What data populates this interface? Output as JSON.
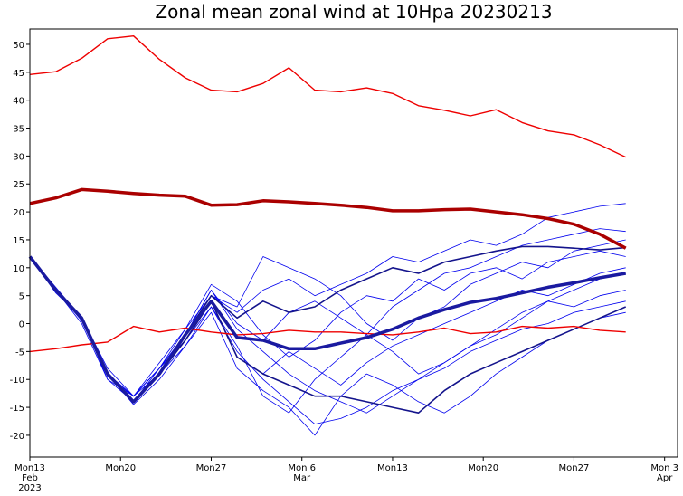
{
  "chart_data": {
    "type": "line",
    "title": "Zonal mean zonal wind at 10Hpa 20230213",
    "x": [
      "2023-02-13",
      "2023-02-15",
      "2023-02-17",
      "2023-02-19",
      "2023-02-21",
      "2023-02-23",
      "2023-02-25",
      "2023-02-27",
      "2023-03-01",
      "2023-03-03",
      "2023-03-05",
      "2023-03-07",
      "2023-03-09",
      "2023-03-11",
      "2023-03-13",
      "2023-03-15",
      "2023-03-17",
      "2023-03-19",
      "2023-03-21",
      "2023-03-23",
      "2023-03-25",
      "2023-03-27",
      "2023-03-29",
      "2023-03-31"
    ],
    "xlim": [
      "2023-02-13",
      "2023-04-04"
    ],
    "xticks": [
      {
        "value": "2023-02-13",
        "label": [
          "Mon13",
          "Feb",
          "2023"
        ]
      },
      {
        "value": "2023-02-20",
        "label": [
          "Mon20"
        ]
      },
      {
        "value": "2023-02-27",
        "label": [
          "Mon27"
        ]
      },
      {
        "value": "2023-03-06",
        "label": [
          "Mon 6",
          "Mar"
        ]
      },
      {
        "value": "2023-03-13",
        "label": [
          "Mon13"
        ]
      },
      {
        "value": "2023-03-20",
        "label": [
          "Mon20"
        ]
      },
      {
        "value": "2023-03-27",
        "label": [
          "Mon27"
        ]
      },
      {
        "value": "2023-04-03",
        "label": [
          "Mon 3",
          "Apr"
        ]
      }
    ],
    "ylim": [
      -23.9,
      52.75
    ],
    "yticks": [
      -20,
      -15,
      -10,
      -5,
      0,
      5,
      10,
      15,
      20,
      25,
      30,
      35,
      40,
      45,
      50
    ],
    "series": [
      {
        "color": "#0000ee",
        "width": 0.8,
        "values": [
          12,
          6,
          0.5,
          -9.5,
          -13,
          -7,
          -1,
          5,
          2,
          6,
          8,
          5,
          7,
          9,
          12,
          11,
          13,
          15,
          14,
          16,
          19,
          20,
          21,
          21.5
        ]
      },
      {
        "color": "#0000ee",
        "width": 0.8,
        "values": [
          12,
          6,
          1,
          -10,
          -14,
          -8,
          -3,
          3,
          -5,
          -10,
          -14,
          -18,
          -17,
          -15,
          -12,
          -10,
          -8,
          -5,
          -3,
          -1,
          0,
          2,
          3,
          4
        ]
      },
      {
        "color": "#0000ee",
        "width": 0.8,
        "values": [
          12,
          6,
          1,
          -8,
          -13,
          -9,
          -2,
          6,
          0,
          -3,
          2,
          4,
          1,
          -2,
          3,
          6,
          9,
          10,
          12,
          14,
          15,
          16,
          17,
          16.5
        ]
      },
      {
        "color": "#0000ee",
        "width": 0.8,
        "values": [
          12,
          5.5,
          1,
          -9,
          -14.5,
          -10,
          -4,
          2,
          -8,
          -12,
          -15,
          -20,
          -13,
          -9,
          -11,
          -14,
          -16,
          -13,
          -9,
          -6,
          -3,
          -1,
          1,
          2
        ]
      },
      {
        "color": "#0000ee",
        "width": 0.8,
        "values": [
          12,
          6,
          0,
          -10,
          -13,
          -8,
          -1,
          7,
          4,
          -2,
          -6,
          -3,
          2,
          5,
          4,
          8,
          6,
          9,
          10,
          8,
          11,
          12,
          13,
          12
        ]
      },
      {
        "color": "#0000ee",
        "width": 0.8,
        "values": [
          12,
          6,
          1,
          -9,
          -14,
          -9,
          -3,
          4,
          -6,
          -9,
          -5,
          -8,
          -11,
          -7,
          -4,
          -2,
          0,
          2,
          4,
          6,
          5,
          7,
          9,
          10
        ]
      },
      {
        "color": "#0000ee",
        "width": 0.8,
        "values": [
          12,
          6,
          1,
          -9,
          -13,
          -8,
          -2,
          5,
          3,
          12,
          10,
          8,
          5,
          0,
          -3,
          1,
          3,
          7,
          9,
          11,
          10,
          13,
          14,
          15
        ]
      },
      {
        "color": "#0000ee",
        "width": 0.8,
        "values": [
          12,
          6.5,
          1,
          -9,
          -14,
          -9,
          -4,
          3,
          -4,
          -13,
          -16,
          -10,
          -6,
          -2,
          -5,
          -9,
          -7,
          -4,
          -2,
          1,
          4,
          3,
          5,
          6
        ]
      },
      {
        "color": "#0000ee",
        "width": 0.8,
        "values": [
          12,
          6,
          1,
          -9,
          -13,
          -8,
          -2,
          6,
          -1,
          -5,
          -9,
          -12,
          -14,
          -16,
          -13,
          -10,
          -7,
          -4,
          -1,
          2,
          4,
          6,
          8,
          9
        ]
      },
      {
        "color": "#14148c",
        "width": 1.6,
        "values": [
          12,
          6,
          1,
          -9,
          -14,
          -9,
          -2,
          5,
          1,
          4,
          2,
          3,
          6,
          8,
          10,
          9,
          11,
          12,
          13,
          13.8,
          13.8,
          13.5,
          13.2,
          13.6
        ]
      },
      {
        "color": "#14148c",
        "width": 1.6,
        "values": [
          12,
          6,
          1,
          -9,
          -14,
          -9,
          -3,
          4,
          -6,
          -9,
          -11,
          -13,
          -13,
          -14,
          -15,
          -16,
          -12,
          -9,
          -7,
          -5,
          -3,
          -1,
          1,
          3
        ]
      },
      {
        "color": "#ee0000",
        "width": 1.4,
        "values": [
          44.6,
          45.1,
          47.5,
          51.0,
          51.5,
          47.3,
          44,
          41.8,
          41.5,
          43,
          45.8,
          41.8,
          41.5,
          42.2,
          41.2,
          39.0,
          38.2,
          37.2,
          38.3,
          36.0,
          34.5,
          33.8,
          32.0,
          29.8
        ]
      },
      {
        "color": "#ee0000",
        "width": 1.4,
        "values": [
          -5,
          -4.5,
          -3.8,
          -3.3,
          -0.5,
          -1.5,
          -0.8,
          -1.5,
          -2,
          -1.8,
          -1.2,
          -1.5,
          -1.5,
          -1.8,
          -2,
          -1.5,
          -0.8,
          -1.8,
          -1.5,
          -0.5,
          -0.8,
          -0.5,
          -1.2,
          -1.5
        ]
      },
      {
        "color": "#aa0000",
        "width": 3.5,
        "values": [
          21.5,
          22.5,
          24,
          23.7,
          23.3,
          23,
          22.8,
          21.2,
          21.3,
          22,
          21.8,
          21.5,
          21.2,
          20.8,
          20.2,
          20.2,
          20.4,
          20.5,
          20,
          19.5,
          18.8,
          17.8,
          16,
          13.5
        ]
      },
      {
        "color": "#1a1aa0",
        "width": 3.5,
        "values": [
          12,
          6,
          1,
          -9,
          -14,
          -9,
          -2,
          4,
          -2.5,
          -3,
          -4.5,
          -4.5,
          -3.5,
          -2.5,
          -1,
          1,
          2.5,
          3.8,
          4.5,
          5.5,
          6.5,
          7.3,
          8.2,
          9
        ]
      }
    ]
  }
}
